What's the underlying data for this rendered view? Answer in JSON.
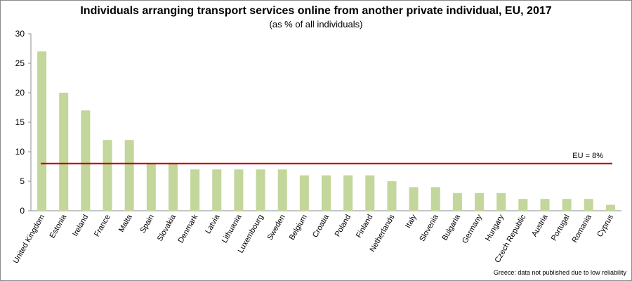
{
  "chart_data": {
    "type": "bar",
    "title": "Individuals arranging transport services online from another private individual, EU, 2017",
    "subtitle": "(as % of all individuals)",
    "categories": [
      "United Kingdom",
      "Estonia",
      "Ireland",
      "France",
      "Malta",
      "Spain",
      "Slovakia",
      "Denmark",
      "Latvia",
      "Lithuania",
      "Luxembourg",
      "Sweden",
      "Belgium",
      "Croatia",
      "Poland",
      "Finland",
      "Netherlands",
      "Italy",
      "Slovenia",
      "Bulgaria",
      "Germany",
      "Hungary",
      "Czech Republic",
      "Austria",
      "Portugal",
      "Romania",
      "Cyprus"
    ],
    "series": [
      {
        "values": [
          27,
          20,
          17,
          12,
          12,
          8,
          8,
          7,
          7,
          7,
          7,
          7,
          6,
          6,
          6,
          6,
          5,
          4,
          4,
          3,
          3,
          3,
          2,
          2,
          2,
          2,
          1
        ],
        "color": "#c3d69b"
      }
    ],
    "reference_line": {
      "value": 8,
      "label": "EU = 8%",
      "color": "#c00000"
    },
    "ylim": [
      0,
      30
    ],
    "yticks": [
      0,
      5,
      10,
      15,
      20,
      25,
      30
    ],
    "xlabel": "",
    "ylabel": "",
    "grid": false,
    "footnote": "Greece: data not published due to low reliability"
  }
}
